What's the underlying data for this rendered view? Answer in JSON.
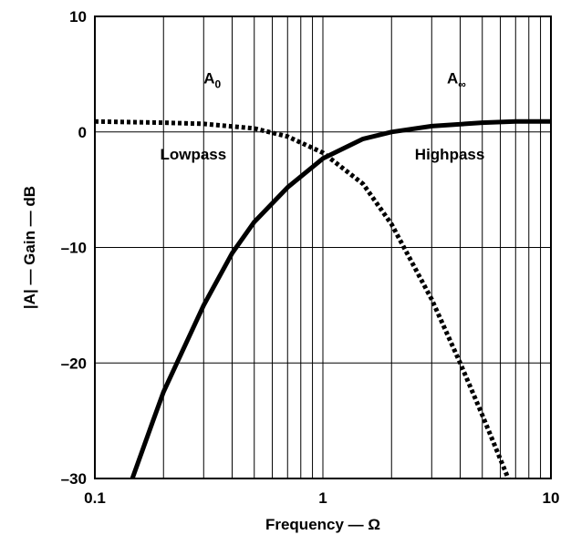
{
  "chart_data": {
    "type": "line",
    "title": "",
    "xlabel": "Frequency — Ω",
    "ylabel": "|A| — Gain — dB",
    "xscale": "log",
    "xlim": [
      0.1,
      10
    ],
    "ylim": [
      -30,
      10
    ],
    "grid": true,
    "x_ticks": [
      "0.1",
      "1",
      "10"
    ],
    "y_ticks": [
      "10",
      "0",
      "–10",
      "–20",
      "–30"
    ],
    "series": [
      {
        "name": "Highpass",
        "style": "solid",
        "x": [
          0.146,
          0.18,
          0.2,
          0.3,
          0.4,
          0.5,
          0.7,
          1.0,
          1.5,
          2.0,
          3.0,
          5.0,
          7.0,
          10.0
        ],
        "y": [
          -30,
          -25,
          -22.5,
          -15,
          -10.5,
          -7.8,
          -4.8,
          -2.3,
          -0.6,
          0.0,
          0.5,
          0.8,
          0.9,
          0.9
        ]
      },
      {
        "name": "Lowpass",
        "style": "dashed",
        "x": [
          0.1,
          0.2,
          0.3,
          0.5,
          0.7,
          1.0,
          1.5,
          2.0,
          3.0,
          4.0,
          5.0,
          6.5
        ],
        "y": [
          0.9,
          0.8,
          0.7,
          0.3,
          -0.4,
          -1.8,
          -4.5,
          -8.0,
          -14.5,
          -20.0,
          -24.5,
          -30.0
        ]
      }
    ],
    "annotations": [
      {
        "text": "A",
        "sub": "0",
        "x": 0.3,
        "y": 4.2
      },
      {
        "text": "A",
        "sub": "∞",
        "x": 3.5,
        "y": 4.2
      },
      {
        "text": "Lowpass",
        "x": 0.27,
        "y": -2.4
      },
      {
        "text": "Highpass",
        "x": 3.6,
        "y": -2.4
      }
    ]
  }
}
